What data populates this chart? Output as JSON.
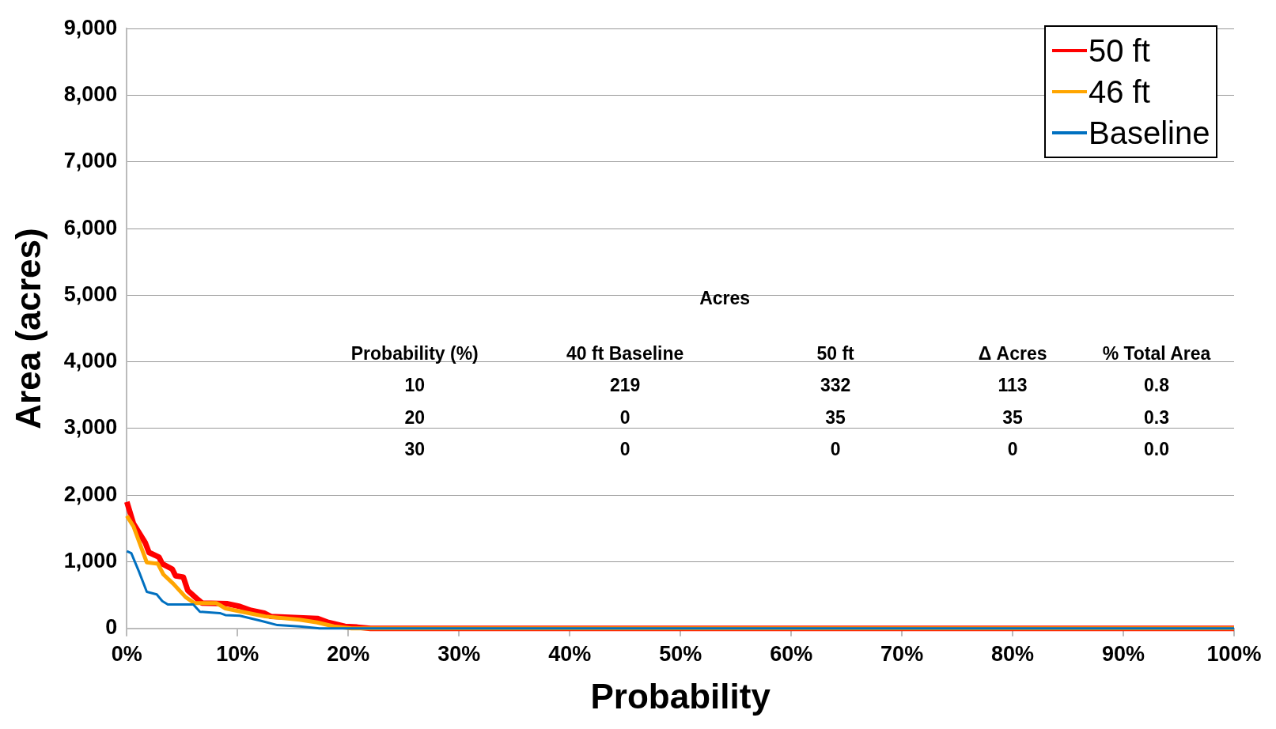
{
  "chart_data": {
    "type": "line",
    "xlabel": "Probability",
    "ylabel": "Area (acres)",
    "xlim": [
      0,
      100
    ],
    "xticks": [
      {
        "value": 0,
        "label": "0%"
      },
      {
        "value": 10,
        "label": "10%"
      },
      {
        "value": 20,
        "label": "20%"
      },
      {
        "value": 30,
        "label": "30%"
      },
      {
        "value": 40,
        "label": "40%"
      },
      {
        "value": 50,
        "label": "50%"
      },
      {
        "value": 60,
        "label": "60%"
      },
      {
        "value": 70,
        "label": "70%"
      },
      {
        "value": 80,
        "label": "80%"
      },
      {
        "value": 90,
        "label": "90%"
      },
      {
        "value": 100,
        "label": "100%"
      }
    ],
    "ylim": [
      0,
      9000
    ],
    "yticks": [
      0,
      {
        "value": 1000,
        "label": "1,000"
      },
      {
        "value": 2000,
        "label": "2,000"
      },
      {
        "value": 3000,
        "label": "3,000"
      },
      {
        "value": 4000,
        "label": "4,000"
      },
      {
        "value": 5000,
        "label": "5,000"
      },
      {
        "value": 6000,
        "label": "6,000"
      },
      {
        "value": 7000,
        "label": "7,000"
      },
      {
        "value": 8000,
        "label": "8,000"
      },
      {
        "value": 9000,
        "label": "9,000"
      }
    ],
    "grid": "y",
    "legend": "top right",
    "marker": "none",
    "line_style": "solid",
    "series": [
      {
        "name": "50 ft",
        "color": "#ff0000",
        "x": [
          0,
          0.6,
          1.65,
          2,
          2.9,
          3.2,
          4.1,
          4.4,
          5.1,
          5.5,
          6.3,
          6.8,
          9.1,
          10.2,
          11.2,
          12.4,
          13,
          17.2,
          18.2,
          19.7,
          20.8,
          22,
          100
        ],
        "values": [
          1900,
          1570,
          1290,
          1140,
          1070,
          970,
          890,
          790,
          770,
          570,
          450,
          380,
          370,
          330,
          270,
          230,
          180,
          150,
          90,
          30,
          20,
          0,
          0
        ]
      },
      {
        "name": "46 ft",
        "color": "#ffa500",
        "x": [
          0,
          0.6,
          1.8,
          2.8,
          3.3,
          4.2,
          5.3,
          6.1,
          8.1,
          8.9,
          10.4,
          12.5,
          15.6,
          17.2,
          18.7,
          20.3,
          100
        ],
        "values": [
          1690,
          1530,
          990,
          970,
          810,
          670,
          470,
          380,
          380,
          300,
          250,
          180,
          130,
          90,
          30,
          0,
          0
        ]
      },
      {
        "name": "Baseline",
        "color": "#0070c0",
        "x": [
          0,
          0.4,
          1.1,
          1.8,
          2.7,
          3.2,
          3.7,
          6,
          6.6,
          8.4,
          8.9,
          10.2,
          12.2,
          13.6,
          15.6,
          17.4,
          100
        ],
        "values": [
          1160,
          1130,
          850,
          550,
          510,
          410,
          360,
          360,
          250,
          230,
          200,
          190,
          110,
          50,
          30,
          0,
          0
        ]
      }
    ],
    "annotations": [
      "Acres",
      "Probability (%)",
      "40 ft Baseline",
      "50 ft",
      "Δ Acres",
      "% Total Area",
      "10",
      "219",
      "332",
      "113",
      "0.8",
      "20",
      "0",
      "35",
      "35",
      "0.3",
      "30",
      "0",
      "0",
      "0",
      "0.0"
    ]
  }
}
